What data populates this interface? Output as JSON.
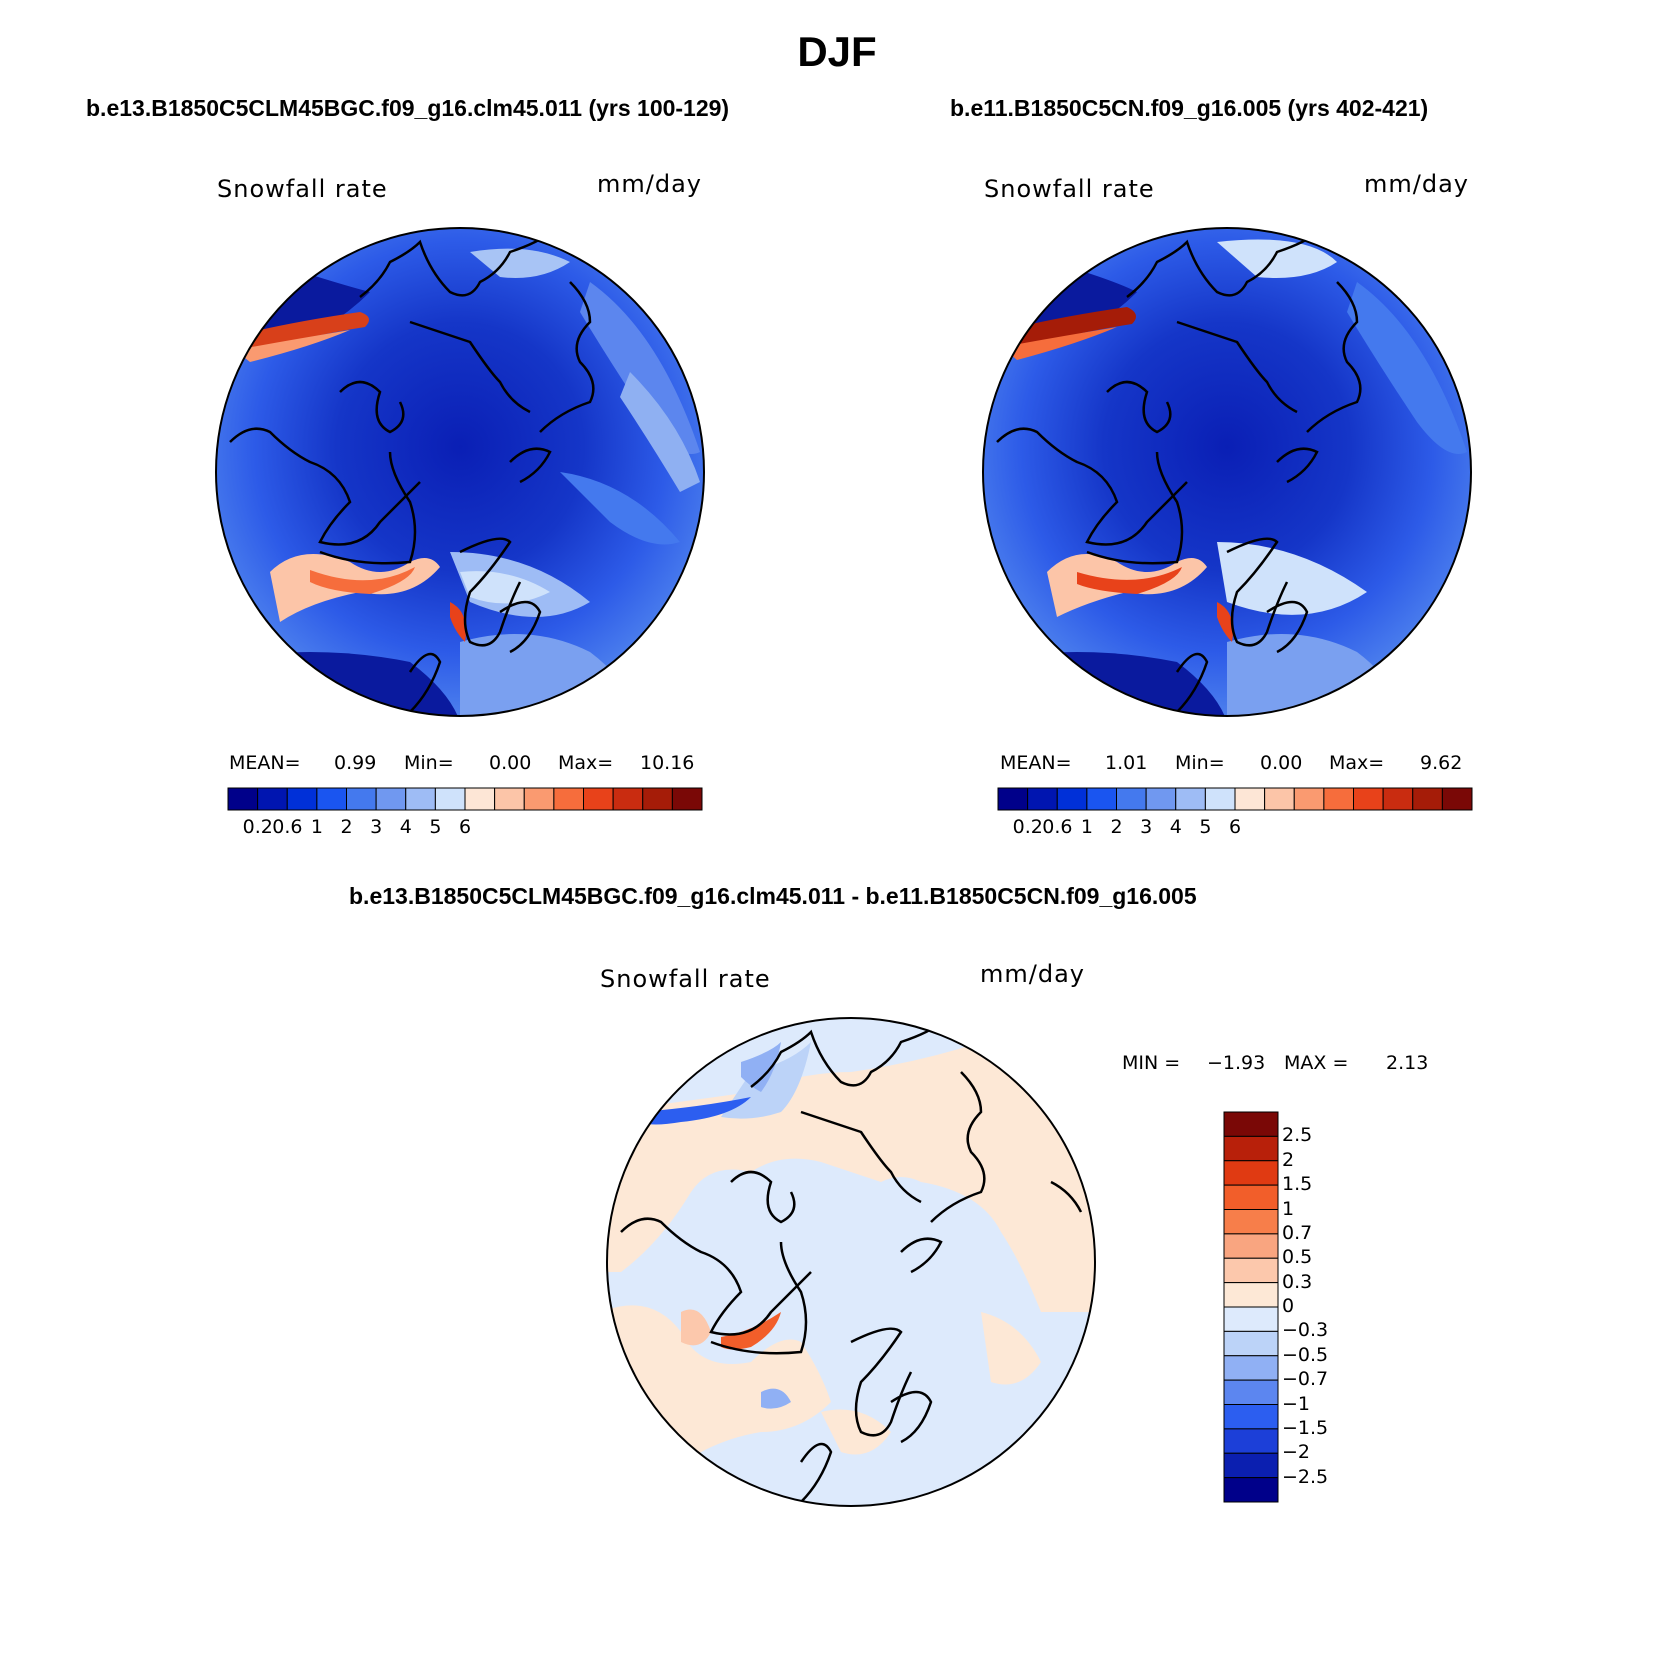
{
  "page": {
    "title": "DJF"
  },
  "panels": [
    {
      "id": "case1",
      "case_title": "b.e13.B1850C5CLM45BGC.f09_g16.clm45.011 (yrs 100-129)",
      "variable": "Snowfall rate",
      "units": "mm/day",
      "stats": {
        "mean_label": "MEAN=",
        "mean": "0.99",
        "min_label": "Min=",
        "min": "0.00",
        "max_label": "Max=",
        "max": "10.16"
      }
    },
    {
      "id": "case2",
      "case_title": "b.e11.B1850C5CN.f09_g16.005 (yrs 402-421)",
      "variable": "Snowfall rate",
      "units": "mm/day",
      "stats": {
        "mean_label": "MEAN=",
        "mean": "1.01",
        "min_label": "Min=",
        "min": "0.00",
        "max_label": "Max=",
        "max": "9.62"
      }
    },
    {
      "id": "diff",
      "case_title": "b.e13.B1850C5CLM45BGC.f09_g16.clm45.011 - b.e11.B1850C5CN.f09_g16.005",
      "variable": "Snowfall rate",
      "units": "mm/day",
      "stats": {
        "min_label": "MIN =",
        "min": "−1.93",
        "max_label": "MAX =",
        "max": "2.13"
      }
    }
  ],
  "colorbar_main": {
    "colors": [
      "#00008a",
      "#0015b0",
      "#0030d8",
      "#1a55f0",
      "#4479ee",
      "#7098f0",
      "#9ebcf5",
      "#cfe2fb",
      "#fde6d6",
      "#fcc5a8",
      "#fa9a70",
      "#f66d3c",
      "#e8421a",
      "#c92c10",
      "#a51c08",
      "#7a0806"
    ],
    "tick_labels": [
      "0.2",
      "0.6",
      "1",
      "2",
      "3",
      "4",
      "5",
      "6"
    ]
  },
  "colorbar_diff": {
    "colors": [
      "#00008a",
      "#0b1fb0",
      "#1c3fd8",
      "#2c5ef0",
      "#5c86f0",
      "#90b0f4",
      "#bcd3f8",
      "#ddeafc",
      "#fde8d6",
      "#fcc8ac",
      "#f9a580",
      "#f77e4a",
      "#f25e2a",
      "#e03a12",
      "#b8200a",
      "#7a0806"
    ],
    "tick_labels": [
      "2.5",
      "2",
      "1.5",
      "1",
      "0.7",
      "0.5",
      "0.3",
      "0",
      "−0.3",
      "−0.5",
      "−0.7",
      "−1",
      "−1.5",
      "−2",
      "−2.5"
    ]
  }
}
